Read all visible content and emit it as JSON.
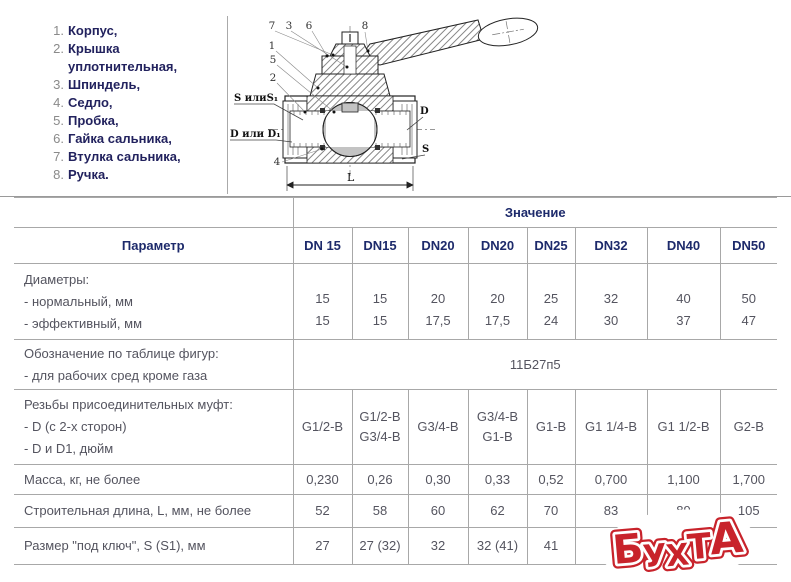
{
  "parts_list": {
    "items": [
      {
        "num": "1.",
        "label": "Корпус,"
      },
      {
        "num": "2.",
        "label": "Крышка уплотнительная,"
      },
      {
        "num": "3.",
        "label": "Шпиндель,"
      },
      {
        "num": "4.",
        "label": "Седло,"
      },
      {
        "num": "5.",
        "label": "Пробка,"
      },
      {
        "num": "6.",
        "label": "Гайка сальника,"
      },
      {
        "num": "7.",
        "label": "Втулка сальника,"
      },
      {
        "num": "8.",
        "label": "Ручка."
      }
    ]
  },
  "diagram": {
    "callouts": [
      "7",
      "3",
      "6",
      "8",
      "1",
      "5",
      "2",
      "4"
    ],
    "labels": {
      "s_left": "S илиS₁",
      "d_left": "D или D₁",
      "d_right": "D",
      "s_right": "S",
      "length": "L"
    }
  },
  "table": {
    "value_header": "Значение",
    "param_header": "Параметр",
    "columns": [
      "DN 15",
      "DN15",
      "DN20",
      "DN20",
      "DN25",
      "DN32",
      "DN40",
      "DN50"
    ],
    "rows": [
      {
        "param": "Диаметры:\n- нормальный, мм\n- эффективный, мм",
        "values": [
          "15\n15",
          "15\n15",
          "20\n17,5",
          "20\n17,5",
          "25\n24",
          "32\n30",
          "40\n37",
          "50\n47"
        ]
      },
      {
        "param": "Обозначение по таблице фигур:\n- для рабочих сред кроме газа",
        "merged": "11Б27п5"
      },
      {
        "param": "Резьбы присоединительных муфт:\n- D (с 2-х сторон)\n- D и D1, дюйм",
        "values": [
          "G1/2-B",
          "G1/2-B\nG3/4-B",
          "G3/4-B",
          "G3/4-B\nG1-B",
          "G1-B",
          "G1 1/4-B",
          "G1 1/2-B",
          "G2-B"
        ]
      },
      {
        "param": "Масса, кг, не более",
        "values": [
          "0,230",
          "0,26",
          "0,30",
          "0,33",
          "0,52",
          "0,700",
          "1,100",
          "1,700"
        ]
      },
      {
        "param": "Строительная длина, L, мм, не более",
        "values": [
          "52",
          "58",
          "60",
          "62",
          "70",
          "83",
          "89",
          "105"
        ]
      },
      {
        "param": "Размер \"под ключ\", S (S1), мм",
        "values": [
          "27",
          "27 (32)",
          "32",
          "32 (41)",
          "41",
          "48",
          "",
          ""
        ]
      }
    ]
  },
  "watermark": {
    "text": "БУХТА",
    "color": "#c8232b"
  },
  "colors": {
    "header_text": "#1d2a6b",
    "body_text": "#54545f",
    "list_text": "#22225e",
    "border": "#a8a8a8",
    "watermark_red": "#c8232b"
  }
}
